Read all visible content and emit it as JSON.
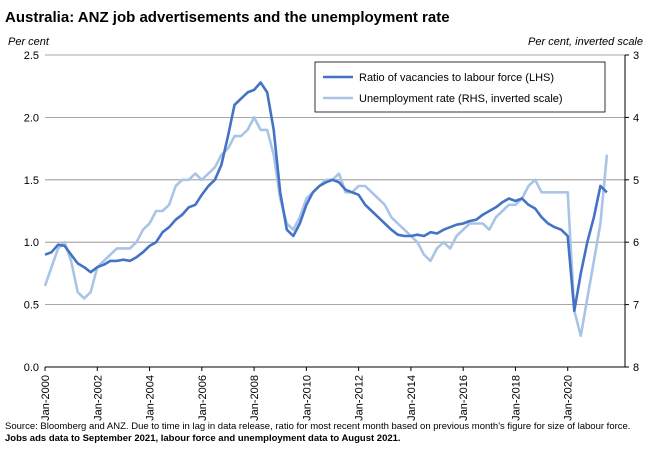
{
  "chart_data": {
    "type": "line",
    "title": "Australia: ANZ job advertisements and the unemployment rate",
    "y_label": "Per cent",
    "y2_label": "Per cent, inverted scale",
    "source": "Source: Bloomberg and ANZ.  Due to time in lag in data release, ratio for most recent month based on previous month's figure for size of labour force.",
    "source_bold": "Jobs ads data to September 2021, labour force and unemployment data to August 2021.",
    "categories": [
      "Jan-2000",
      null,
      null,
      null,
      null,
      null,
      null,
      null,
      "Jan-2002",
      null,
      null,
      null,
      null,
      null,
      null,
      null,
      "Jan-2004",
      null,
      null,
      null,
      null,
      null,
      null,
      null,
      "Jan-2006",
      null,
      null,
      null,
      null,
      null,
      null,
      null,
      "Jan-2008",
      null,
      null,
      null,
      null,
      null,
      null,
      null,
      "Jan-2010",
      null,
      null,
      null,
      null,
      null,
      null,
      null,
      "Jan-2012",
      null,
      null,
      null,
      null,
      null,
      null,
      null,
      "Jan-2014",
      null,
      null,
      null,
      null,
      null,
      null,
      null,
      "Jan-2016",
      null,
      null,
      null,
      null,
      null,
      null,
      null,
      "Jan-2018",
      null,
      null,
      null,
      null,
      null,
      null,
      null,
      "Jan-2020",
      null,
      null,
      null,
      null,
      null,
      null,
      null,
      null
    ],
    "ylim": [
      0,
      2.5
    ],
    "yticks": [
      {
        "value": 0,
        "label": "0.0"
      },
      0.5,
      {
        "value": 1,
        "label": "1.0"
      },
      1.5,
      {
        "value": 2,
        "label": "2.0"
      },
      2.5
    ],
    "y2lim": [
      8,
      3
    ],
    "y2ticks": [
      3,
      4,
      5,
      6,
      7,
      8
    ],
    "grid": true,
    "legend": "top-right",
    "series": [
      {
        "name": "Ratio of vacancies to labour force (LHS)",
        "color": "#4472c4",
        "width": 2.6,
        "values": [
          0.9,
          0.92,
          0.98,
          0.97,
          0.9,
          0.83,
          0.8,
          0.76,
          0.8,
          0.82,
          0.85,
          0.85,
          0.86,
          0.85,
          0.88,
          0.92,
          0.97,
          1.0,
          1.08,
          1.12,
          1.18,
          1.22,
          1.28,
          1.3,
          1.38,
          1.45,
          1.5,
          1.62,
          1.85,
          2.1,
          2.15,
          2.2,
          2.22,
          2.28,
          2.2,
          1.9,
          1.4,
          1.1,
          1.05,
          1.15,
          1.3,
          1.4,
          1.45,
          1.48,
          1.5,
          1.48,
          1.42,
          1.4,
          1.38,
          1.3,
          1.25,
          1.2,
          1.15,
          1.1,
          1.06,
          1.05,
          1.05,
          1.06,
          1.05,
          1.08,
          1.07,
          1.1,
          1.12,
          1.14,
          1.15,
          1.17,
          1.18,
          1.22,
          1.25,
          1.28,
          1.32,
          1.35,
          1.33,
          1.35,
          1.3,
          1.27,
          1.2,
          1.15,
          1.12,
          1.1,
          1.05,
          0.45,
          0.75,
          1.0,
          1.2,
          1.45,
          1.4,
          null,
          null
        ]
      },
      {
        "name": "Unemployment rate (RHS, inverted scale)",
        "color": "#a9c4e6",
        "width": 2.6,
        "axis": "y2",
        "values": [
          6.7,
          6.4,
          6.1,
          6.0,
          6.3,
          6.8,
          6.9,
          6.8,
          6.4,
          6.3,
          6.2,
          6.1,
          6.1,
          6.1,
          6.0,
          5.8,
          5.7,
          5.5,
          5.5,
          5.4,
          5.1,
          5.0,
          5.0,
          4.9,
          5.0,
          4.9,
          4.8,
          4.6,
          4.5,
          4.3,
          4.3,
          4.2,
          4.0,
          4.2,
          4.2,
          4.6,
          5.3,
          5.7,
          5.8,
          5.6,
          5.3,
          5.2,
          5.1,
          5.0,
          5.0,
          4.9,
          5.2,
          5.2,
          5.1,
          5.1,
          5.2,
          5.3,
          5.4,
          5.6,
          5.7,
          5.8,
          5.9,
          6.0,
          6.2,
          6.3,
          6.1,
          6.0,
          6.1,
          5.9,
          5.8,
          5.7,
          5.7,
          5.7,
          5.8,
          5.6,
          5.5,
          5.4,
          5.4,
          5.3,
          5.1,
          5.0,
          5.2,
          5.2,
          5.2,
          5.2,
          5.2,
          7.1,
          7.5,
          6.9,
          6.3,
          5.7,
          4.6,
          null,
          null
        ]
      }
    ]
  }
}
